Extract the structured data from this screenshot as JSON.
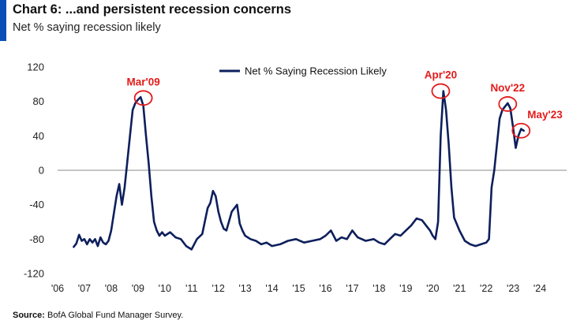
{
  "title": "Chart 6: ...and persistent recession concerns",
  "subtitle": "Net % saying recession likely",
  "source_label": "Source:",
  "source_text": "BofA Global Fund Manager Survey.",
  "colors": {
    "line": "#0d1f5c",
    "accent": "#0a4fb5",
    "annotation": "#e31b1b",
    "axis": "#888888"
  },
  "chart_data": {
    "type": "line",
    "title": "Chart 6: ...and persistent recession concerns",
    "subtitle": "Net % saying recession likely",
    "xlabel": "",
    "ylabel": "",
    "xlim": [
      2006,
      2025
    ],
    "ylim": [
      -120,
      120
    ],
    "yticks": [
      120,
      80,
      40,
      0,
      -40,
      -80,
      -120
    ],
    "xticks": [
      2006,
      2007,
      2008,
      2009,
      2010,
      2011,
      2012,
      2013,
      2014,
      2015,
      2016,
      2017,
      2018,
      2019,
      2020,
      2021,
      2022,
      2023,
      2024
    ],
    "xtick_labels": [
      "'06",
      "'07",
      "'08",
      "'09",
      "'10",
      "'11",
      "'12",
      "'13",
      "'14",
      "'15",
      "'16",
      "'17",
      "'18",
      "'19",
      "'20",
      "'21",
      "'22",
      "'23",
      "'24"
    ],
    "legend": {
      "position": "top-center"
    },
    "series": [
      {
        "name": "Net % Saying Recession Likely",
        "x": [
          2006.6,
          2006.7,
          2006.8,
          2006.9,
          2007.0,
          2007.1,
          2007.2,
          2007.3,
          2007.4,
          2007.5,
          2007.6,
          2007.7,
          2007.8,
          2007.9,
          2008.0,
          2008.1,
          2008.2,
          2008.3,
          2008.4,
          2008.5,
          2008.6,
          2008.7,
          2008.8,
          2008.9,
          2009.0,
          2009.1,
          2009.2,
          2009.3,
          2009.4,
          2009.5,
          2009.6,
          2009.7,
          2009.8,
          2009.9,
          2010.0,
          2010.2,
          2010.4,
          2010.6,
          2010.8,
          2011.0,
          2011.2,
          2011.4,
          2011.6,
          2011.7,
          2011.8,
          2011.9,
          2012.0,
          2012.1,
          2012.2,
          2012.3,
          2012.5,
          2012.7,
          2012.8,
          2012.9,
          2013.0,
          2013.2,
          2013.4,
          2013.6,
          2013.8,
          2014.0,
          2014.3,
          2014.6,
          2014.9,
          2015.2,
          2015.5,
          2015.8,
          2016.0,
          2016.2,
          2016.4,
          2016.6,
          2016.8,
          2017.0,
          2017.2,
          2017.5,
          2017.8,
          2018.0,
          2018.2,
          2018.4,
          2018.6,
          2018.8,
          2019.0,
          2019.2,
          2019.4,
          2019.6,
          2019.8,
          2019.9,
          2020.0,
          2020.1,
          2020.2,
          2020.3,
          2020.4,
          2020.5,
          2020.6,
          2020.7,
          2020.8,
          2021.0,
          2021.2,
          2021.4,
          2021.6,
          2021.8,
          2022.0,
          2022.1,
          2022.2,
          2022.3,
          2022.4,
          2022.5,
          2022.6,
          2022.7,
          2022.8,
          2022.9,
          2023.0,
          2023.1,
          2023.2,
          2023.3,
          2023.4
        ],
        "values": [
          -89,
          -85,
          -75,
          -82,
          -80,
          -86,
          -80,
          -84,
          -80,
          -88,
          -78,
          -84,
          -86,
          -82,
          -70,
          -50,
          -30,
          -16,
          -40,
          -20,
          10,
          40,
          70,
          78,
          82,
          85,
          75,
          40,
          8,
          -30,
          -60,
          -70,
          -76,
          -72,
          -76,
          -72,
          -78,
          -80,
          -88,
          -92,
          -80,
          -74,
          -44,
          -38,
          -24,
          -30,
          -48,
          -60,
          -68,
          -70,
          -48,
          -40,
          -62,
          -70,
          -76,
          -80,
          -82,
          -86,
          -84,
          -88,
          -86,
          -82,
          -80,
          -84,
          -82,
          -80,
          -76,
          -70,
          -82,
          -78,
          -80,
          -70,
          -78,
          -82,
          -80,
          -84,
          -86,
          -80,
          -74,
          -76,
          -70,
          -64,
          -56,
          -58,
          -66,
          -70,
          -76,
          -80,
          -60,
          40,
          92,
          70,
          30,
          -20,
          -55,
          -70,
          -82,
          -86,
          -88,
          -86,
          -84,
          -80,
          -20,
          0,
          30,
          60,
          70,
          74,
          78,
          72,
          50,
          26,
          40,
          48,
          46
        ]
      }
    ],
    "annotations": [
      {
        "text": "Mar'09",
        "x": 2009.2,
        "y": 84,
        "label_position": "above"
      },
      {
        "text": "Apr'20",
        "x": 2020.3,
        "y": 92,
        "label_position": "above"
      },
      {
        "text": "Nov'22",
        "x": 2022.8,
        "y": 77,
        "label_position": "above"
      },
      {
        "text": "May'23",
        "x": 2023.3,
        "y": 46,
        "label_position": "upper-right"
      }
    ]
  }
}
